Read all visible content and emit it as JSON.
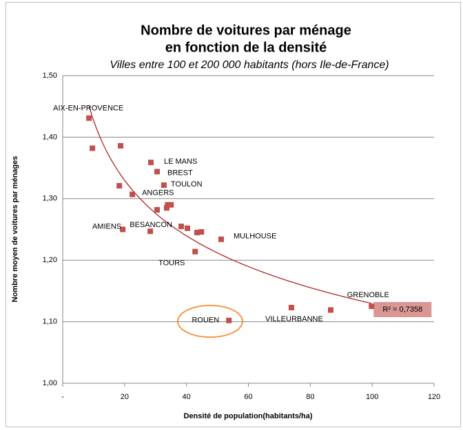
{
  "chart_data": {
    "type": "scatter",
    "title": [
      "Nombre de voitures par ménage",
      "en fonction de la densité"
    ],
    "subtitle": "Villes entre 100 et 200 000 habitants (hors Ile-de-France)",
    "x_label": "Densité de population(habitants/ha)",
    "y_label": "Nombre moyen de voitures par ménages",
    "color": "#c0504d",
    "trendline": {
      "type": "power",
      "color": "#b22222",
      "label": "R² = 0,7358"
    },
    "x": [
      8.5,
      9.6,
      18.7,
      18.3,
      22.5,
      19.4,
      28.5,
      30.5,
      30.5,
      33.9,
      35.0,
      33.6,
      32.7,
      28.3,
      38.3,
      40.3,
      43.4,
      44.8,
      42.8,
      51.2,
      53.7,
      73.9,
      86.6,
      99.8
    ],
    "values": [
      1.431,
      1.382,
      1.386,
      1.321,
      1.307,
      1.25,
      1.359,
      1.344,
      1.282,
      1.29,
      1.29,
      1.285,
      1.322,
      1.247,
      1.255,
      1.252,
      1.245,
      1.246,
      1.214,
      1.234,
      1.102,
      1.123,
      1.119,
      1.125
    ],
    "point_labels": [
      "AIX-EN-PROVENCE",
      null,
      null,
      null,
      "ANGERS",
      "AMIENS",
      "LE MANS",
      "BREST",
      null,
      null,
      null,
      null,
      "TOULON",
      "BESANCON",
      null,
      null,
      null,
      null,
      "TOURS",
      "MULHOUSE",
      "ROUEN",
      "VILLEURBANNE",
      null,
      "GRENOBLE"
    ],
    "xlim": [
      0,
      120
    ],
    "xticks": [
      {
        "value": 0,
        "label": "-"
      },
      20,
      40,
      60,
      80,
      100,
      120
    ],
    "ylim": [
      1.0,
      1.5
    ],
    "yticks": [
      {
        "value": 1.0,
        "label": "1,00"
      },
      {
        "value": 1.1,
        "label": "1,10"
      },
      {
        "value": 1.2,
        "label": "1,20"
      },
      {
        "value": 1.3,
        "label": "1,30"
      },
      {
        "value": 1.4,
        "label": "1,40"
      },
      {
        "value": 1.5,
        "label": "1,50"
      }
    ],
    "grid": true
  }
}
